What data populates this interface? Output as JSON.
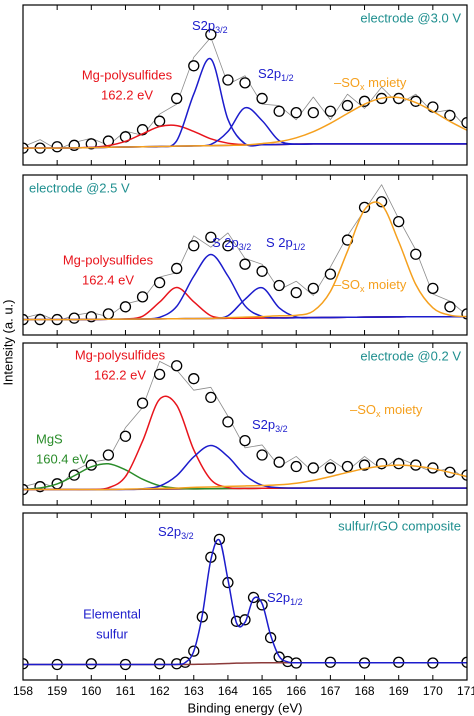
{
  "chart_data": [
    {
      "type": "line",
      "title": "electrode @3.0 V",
      "title_color": "#1f8f8f",
      "title_corner": "right",
      "xlim": [
        158,
        171
      ],
      "xticks": [
        158,
        159,
        160,
        161,
        162,
        163,
        164,
        165,
        166,
        167,
        168,
        169,
        170,
        171
      ],
      "ylim": [
        0,
        100
      ],
      "x": [
        158,
        158.5,
        159,
        159.5,
        160,
        160.5,
        161,
        161.5,
        162,
        162.5,
        163,
        163.5,
        164,
        164.5,
        165,
        165.5,
        166,
        166.5,
        167,
        167.5,
        168,
        168.5,
        169,
        169.5,
        170,
        170.5,
        171
      ],
      "series": [
        {
          "style": "raw",
          "color": "#8c8c8c",
          "values": [
            3,
            8,
            1,
            6,
            9,
            4,
            14,
            11,
            26,
            33,
            66,
            80,
            47,
            53,
            33,
            32,
            22,
            38,
            22,
            40,
            30,
            45,
            33,
            40,
            27,
            29,
            16
          ]
        },
        {
          "style": "circles",
          "color": "#000000",
          "values": [
            2,
            2,
            3,
            4,
            5,
            7,
            10,
            15,
            21,
            37,
            60,
            82,
            50,
            48,
            37,
            28,
            27,
            27,
            28,
            32,
            35,
            37,
            37,
            35,
            31,
            25,
            20
          ]
        },
        {
          "style": "line",
          "color": "#8b3a3a",
          "values": [
            2,
            2,
            2,
            2.2,
            2.4,
            2.6,
            2.8,
            3,
            3.2,
            3.4,
            3.6,
            3.8,
            4,
            4.2,
            4.4,
            4.6,
            4.8,
            5,
            5,
            5,
            5,
            5,
            5,
            5,
            5,
            5,
            5
          ]
        },
        {
          "style": "line",
          "color": "#e8141c",
          "values": [
            2,
            2,
            2,
            2.2,
            2.6,
            3.8,
            6.8,
            12.1,
            17.2,
            17.9,
            13.8,
            8.6,
            5.5,
            4.5,
            4.4,
            4.6,
            4.8,
            5,
            5,
            5,
            5,
            5,
            5,
            5,
            5,
            5,
            5
          ]
        },
        {
          "style": "line",
          "color": "#1c1ccc",
          "values": [
            2,
            2,
            2,
            2.2,
            2.4,
            2.6,
            2.8,
            3,
            3.2,
            7.2,
            40.1,
            64.8,
            22.3,
            5.1,
            4.4,
            4.6,
            4.8,
            5,
            5,
            5,
            5,
            5,
            5,
            5,
            5,
            5,
            5
          ]
        },
        {
          "style": "line",
          "color": "#1c1ccc",
          "values": [
            2,
            2,
            2,
            2.2,
            2.4,
            2.6,
            2.8,
            3,
            3.2,
            3.4,
            3.6,
            4.6,
            13.7,
            30.4,
            21.4,
            7.3,
            4.9,
            5,
            5,
            5,
            5,
            5,
            5,
            5,
            5,
            5,
            5
          ]
        },
        {
          "style": "line",
          "color": "#f5a01e",
          "values": [
            2,
            2,
            2,
            2.2,
            2.4,
            2.6,
            2.8,
            3,
            3.2,
            3.4,
            3.6,
            3.8,
            4,
            4.2,
            5.2,
            6.6,
            9.3,
            13.6,
            19.5,
            26.4,
            33,
            37.2,
            37.7,
            34.1,
            27.9,
            20.8,
            14.6
          ]
        }
      ],
      "annotations": [
        {
          "color": "#e8141c",
          "lines": [
            "Mg-polysulfides",
            "162.2 eV"
          ]
        },
        {
          "color": "#1c1ccc",
          "lines": [
            {
              "text": "S2p",
              "sub": "3/2"
            }
          ]
        },
        {
          "color": "#1c1ccc",
          "lines": [
            {
              "text": "S2p",
              "sub": "1/2"
            }
          ]
        },
        {
          "color": "#f5a01e",
          "lines": [
            {
              "text": "–SO",
              "sub": "x",
              "after": " moiety"
            }
          ]
        }
      ]
    },
    {
      "type": "line",
      "title": "electrode @2.5 V",
      "title_color": "#1f8f8f",
      "title_corner": "left",
      "xlim": [
        158,
        171
      ],
      "xticks": [
        158,
        159,
        160,
        161,
        162,
        163,
        164,
        165,
        166,
        167,
        168,
        169,
        170,
        171
      ],
      "ylim": [
        0,
        100
      ],
      "x": [
        158,
        158.5,
        159,
        159.5,
        160,
        160.5,
        161,
        161.5,
        162,
        162.5,
        163,
        163.5,
        164,
        164.5,
        165,
        165.5,
        166,
        166.5,
        167,
        167.5,
        168,
        168.5,
        169,
        169.5,
        170,
        170.5,
        171
      ],
      "series": [
        {
          "style": "raw",
          "color": "#8c8c8c",
          "values": [
            2,
            5,
            0,
            4,
            6,
            3,
            12,
            15,
            31,
            34,
            60,
            52,
            62,
            44,
            40,
            22,
            28,
            18,
            38,
            60,
            78,
            96,
            72,
            50,
            19,
            14,
            4
          ]
        },
        {
          "style": "circles",
          "color": "#000000",
          "values": [
            1,
            1,
            1,
            2,
            3,
            5,
            10,
            17,
            27,
            37,
            53,
            59,
            53,
            40,
            35,
            25,
            20,
            23,
            33,
            57,
            80,
            84,
            70,
            47,
            23,
            10,
            5
          ]
        },
        {
          "style": "line",
          "color": "#8b3a3a",
          "values": [
            1,
            1,
            1,
            1,
            1.1,
            1.2,
            1.3,
            1.4,
            1.5,
            1.6,
            1.7,
            1.8,
            1.9,
            2,
            2.1,
            2.2,
            2.3,
            2.4,
            2.5,
            2.6,
            2.7,
            2.8,
            2.9,
            3,
            3,
            3,
            3
          ]
        },
        {
          "style": "line",
          "color": "#e8141c",
          "values": [
            1,
            1,
            1,
            1,
            1.1,
            1.2,
            1.4,
            3.3,
            13.3,
            23.6,
            13.5,
            3.7,
            2,
            2,
            2.1,
            2.2,
            2.3,
            2.4,
            2.5,
            2.6,
            2.7,
            2.8,
            2.9,
            3,
            3,
            3,
            3
          ]
        },
        {
          "style": "line",
          "color": "#1c1ccc",
          "values": [
            1,
            1,
            1,
            1,
            1.1,
            1.2,
            1.3,
            1.4,
            2.6,
            10.3,
            31.5,
            46.8,
            31.7,
            10.7,
            3.2,
            2.2,
            2.3,
            2.4,
            2.5,
            2.6,
            2.7,
            2.8,
            2.9,
            3,
            3,
            3,
            3
          ]
        },
        {
          "style": "line",
          "color": "#1c1ccc",
          "values": [
            1,
            1,
            1,
            1,
            1.1,
            1.2,
            1.3,
            1.4,
            1.5,
            1.6,
            1.7,
            1.8,
            3.7,
            15.3,
            23.4,
            9.3,
            2.8,
            2.4,
            2.5,
            2.6,
            2.7,
            2.8,
            2.9,
            3,
            3,
            3,
            3
          ]
        },
        {
          "style": "line",
          "color": "#f5a01e",
          "values": [
            1,
            1,
            1,
            1,
            1.1,
            1.2,
            1.3,
            1.4,
            1.5,
            1.6,
            1.7,
            1.8,
            2.4,
            2.7,
            3.1,
            3.7,
            4,
            7,
            20.8,
            49.1,
            78.4,
            81.8,
            55.9,
            25.7,
            9.3,
            4.1,
            3.1
          ]
        }
      ],
      "annotations": [
        {
          "color": "#1c1ccc",
          "lines": [
            {
              "text": "S 2p",
              "sub": "3/2"
            }
          ]
        },
        {
          "color": "#1c1ccc",
          "lines": [
            {
              "text": "S 2p",
              "sub": "1/2"
            }
          ]
        },
        {
          "color": "#e8141c",
          "lines": [
            "Mg-polysulfides",
            "162.4 eV"
          ]
        },
        {
          "color": "#f5a01e",
          "lines": [
            {
              "text": "–SO",
              "sub": "x",
              "after": " moiety"
            }
          ]
        }
      ]
    },
    {
      "type": "line",
      "title": "electrode @0.2 V",
      "title_color": "#1f8f8f",
      "title_corner": "right",
      "xlim": [
        158,
        171
      ],
      "xticks": [
        158,
        159,
        160,
        161,
        162,
        163,
        164,
        165,
        166,
        167,
        168,
        169,
        170,
        171
      ],
      "ylim": [
        0,
        100
      ],
      "x": [
        158,
        158.5,
        159,
        159.5,
        160,
        160.5,
        161,
        161.5,
        162,
        162.5,
        163,
        163.5,
        164,
        164.5,
        165,
        165.5,
        166,
        166.5,
        167,
        167.5,
        168,
        168.5,
        169,
        169.5,
        170,
        170.5,
        171
      ],
      "series": [
        {
          "style": "raw",
          "color": "#8c8c8c",
          "values": [
            3,
            6,
            2,
            14,
            20,
            22,
            44,
            58,
            90,
            84,
            70,
            72,
            52,
            30,
            32,
            17,
            24,
            13,
            22,
            14,
            24,
            15,
            23,
            18,
            13,
            16,
            8
          ]
        },
        {
          "style": "circles",
          "color": "#000000",
          "values": [
            1,
            3,
            5,
            11,
            18,
            25,
            38,
            61,
            81,
            87,
            78,
            65,
            48,
            35,
            25,
            20,
            17,
            16,
            16,
            17,
            18,
            19,
            19,
            18,
            16,
            13,
            11
          ]
        },
        {
          "style": "line",
          "color": "#8b3a3a",
          "values": [
            1,
            1,
            1,
            1,
            1,
            1,
            1.1,
            1.2,
            1.3,
            1.4,
            1.5,
            1.6,
            1.7,
            1.8,
            1.9,
            2,
            2,
            2,
            2,
            2,
            2,
            2,
            2,
            2,
            2,
            2,
            2
          ]
        },
        {
          "style": "line",
          "color": "#2a8c2a",
          "values": [
            1.2,
            2.1,
            4.9,
            10.6,
            16.8,
            18.9,
            14.7,
            8.2,
            3.7,
            2,
            1.5,
            1.6,
            1.7,
            1.8,
            1.9,
            2,
            2,
            2,
            2,
            2,
            2,
            2,
            2,
            2,
            2,
            2,
            2
          ]
        },
        {
          "style": "line",
          "color": "#e8141c",
          "values": [
            1,
            1,
            1,
            1,
            1.1,
            2.2,
            10,
            34.6,
            63.7,
            59.6,
            28.6,
            7.9,
            2.4,
            1.8,
            1.9,
            2,
            2,
            2,
            2,
            2,
            2,
            2,
            2,
            2,
            2,
            2,
            2
          ]
        },
        {
          "style": "line",
          "color": "#1c1ccc",
          "values": [
            1,
            1,
            1,
            1,
            1,
            1,
            1.1,
            1.5,
            3.4,
            10.6,
            23.7,
            31.6,
            23.9,
            11,
            4,
            2.3,
            2,
            2,
            2,
            2,
            2,
            2,
            2,
            2,
            2,
            2,
            2
          ]
        },
        {
          "style": "line",
          "color": "#f5a01e",
          "values": [
            1,
            1,
            1,
            1,
            1,
            1,
            1.3,
            1.5,
            1.8,
            2,
            2.5,
            2.8,
            3.2,
            3.5,
            3.8,
            4.3,
            5.4,
            7.4,
            10,
            12.9,
            15.5,
            17.3,
            18,
            17.3,
            15.5,
            12.9,
            10
          ]
        }
      ],
      "annotations": [
        {
          "color": "#e8141c",
          "lines": [
            "Mg-polysulfides",
            "162.2 eV"
          ]
        },
        {
          "color": "#1c1ccc",
          "lines": [
            {
              "text": "S2p",
              "sub": "3/2"
            }
          ]
        },
        {
          "color": "#2a8c2a",
          "lines": [
            "MgS",
            "160.4 eV"
          ]
        },
        {
          "color": "#f5a01e",
          "lines": [
            {
              "text": "–SO",
              "sub": "x",
              "after": " moiety"
            }
          ]
        }
      ]
    },
    {
      "type": "line",
      "title": "sulfur/rGO composite",
      "title_color": "#1f8f8f",
      "title_corner": "right",
      "x_label": "Binding energy (eV)",
      "y_label": "Intensity (a. u.)",
      "xlim": [
        158,
        171
      ],
      "xticks": [
        158,
        159,
        160,
        161,
        162,
        163,
        164,
        165,
        166,
        167,
        168,
        169,
        170,
        171
      ],
      "ylim": [
        0,
        100
      ],
      "x": [
        158,
        159,
        160,
        161,
        162,
        162.5,
        162.75,
        163,
        163.25,
        163.5,
        163.75,
        164,
        164.25,
        164.5,
        164.75,
        165,
        165.25,
        165.5,
        165.75,
        166,
        167,
        168,
        169,
        170,
        171
      ],
      "series": [
        {
          "style": "circles",
          "color": "#000000",
          "values": [
            1.5,
            1,
            1.5,
            1,
            1.5,
            1.5,
            2.5,
            10,
            33,
            73,
            85,
            56,
            30,
            31,
            46,
            41,
            19,
            6,
            3,
            2,
            2.5,
            2,
            2.5,
            2,
            2.5
          ]
        },
        {
          "style": "line",
          "color": "#8b3a3a",
          "values": [
            1,
            1,
            1,
            1,
            1,
            1,
            1,
            1.1,
            1.2,
            1.3,
            1.5,
            1.7,
            1.9,
            2,
            2.1,
            2.2,
            2.2,
            2.2,
            2.2,
            2.2,
            2.2,
            2.2,
            2.2,
            2.2,
            2.2
          ]
        },
        {
          "style": "line",
          "color": "#1c1ccc",
          "values": [
            1,
            1,
            1,
            1,
            1,
            1.1,
            2.3,
            9.9,
            34.2,
            71.3,
            84.5,
            58.1,
            29,
            29.3,
            45.2,
            41.9,
            20.7,
            6.5,
            2.7,
            2.2,
            2.2,
            2.2,
            2.2,
            2.2,
            2.2
          ]
        }
      ],
      "annotations": [
        {
          "color": "#1c1ccc",
          "lines": [
            {
              "text": "S2p",
              "sub": "3/2"
            }
          ]
        },
        {
          "color": "#1c1ccc",
          "lines": [
            {
              "text": "S2p",
              "sub": "1/2"
            }
          ]
        },
        {
          "color": "#1c1ccc",
          "lines": [
            "Elemental",
            "sulfur"
          ]
        }
      ]
    }
  ]
}
